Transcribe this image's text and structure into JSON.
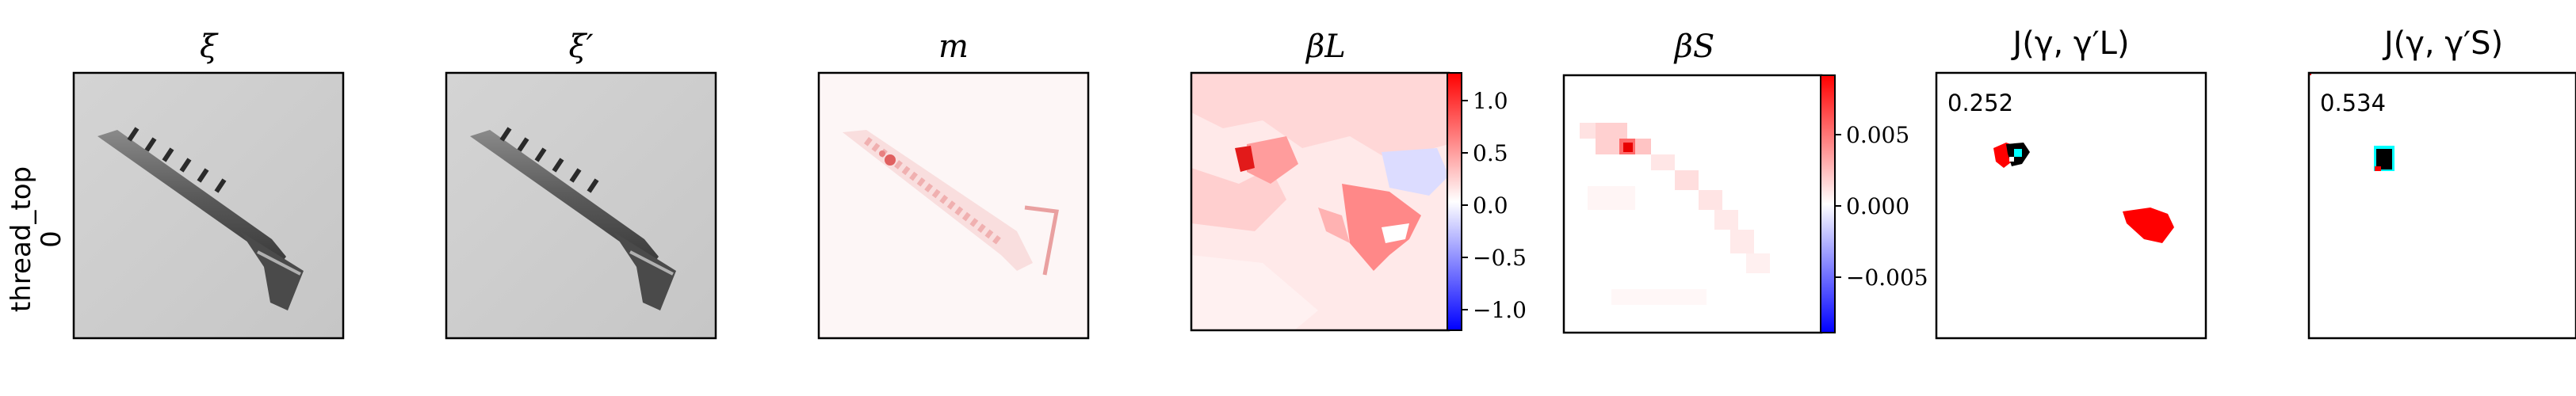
{
  "row_label": {
    "line1": "thread_top",
    "line2": "0"
  },
  "panels": [
    {
      "title": "ξ",
      "kind": "image"
    },
    {
      "title": "ξ′",
      "kind": "image"
    },
    {
      "title": "m",
      "kind": "map"
    },
    {
      "title": "βL",
      "kind": "map",
      "colorbar": [
        "1.0",
        "0.5",
        "0.0",
        "−0.5",
        "−1.0"
      ]
    },
    {
      "title": "βS",
      "kind": "map",
      "colorbar": [
        "0.005",
        "0.000",
        "−0.005"
      ]
    },
    {
      "title": "J(γ, γ′L)",
      "kind": "overlay",
      "score": "0.252"
    },
    {
      "title": "J(γ, γ′S)",
      "kind": "overlay",
      "score": "0.534"
    }
  ],
  "colors": {
    "positive": "#ff0000",
    "negative": "#0000ff",
    "black": "#000000",
    "cyan": "#00ffff"
  }
}
